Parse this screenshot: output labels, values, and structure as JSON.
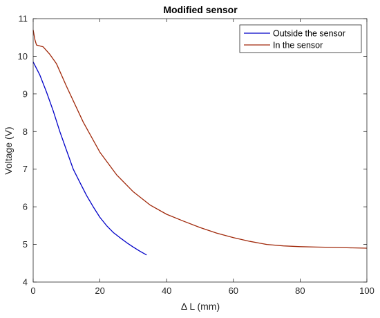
{
  "chart_data": {
    "type": "line",
    "title": "Modified sensor",
    "xlabel": "Δ L (mm)",
    "ylabel": "Voltage (V)",
    "xlim": [
      0,
      100
    ],
    "ylim": [
      4,
      11
    ],
    "xticks": [
      "0",
      "20",
      "40",
      "60",
      "80",
      "100"
    ],
    "yticks": [
      "4",
      "5",
      "6",
      "7",
      "8",
      "9",
      "10",
      "11"
    ],
    "grid": false,
    "legend_position": "top-right",
    "colors": {
      "series_0": "#0000c8",
      "series_1": "#a0280a",
      "axis": "#262626"
    },
    "series": [
      {
        "name": "Outside the sensor",
        "x": [
          0,
          2,
          4,
          6,
          8,
          10,
          12,
          14,
          16,
          18,
          20,
          22,
          24,
          26,
          28,
          30,
          32,
          34
        ],
        "y": [
          9.85,
          9.5,
          9.05,
          8.55,
          8.0,
          7.5,
          7.0,
          6.65,
          6.3,
          6.0,
          5.72,
          5.5,
          5.32,
          5.18,
          5.05,
          4.93,
          4.82,
          4.72
        ]
      },
      {
        "name": "In the sensor",
        "x": [
          0,
          0.5,
          1,
          3,
          5,
          7,
          10,
          15,
          20,
          25,
          30,
          35,
          40,
          45,
          50,
          55,
          60,
          65,
          70,
          75,
          80,
          85,
          90,
          95,
          100
        ],
        "y": [
          10.7,
          10.45,
          10.3,
          10.25,
          10.05,
          9.8,
          9.2,
          8.25,
          7.45,
          6.85,
          6.4,
          6.05,
          5.8,
          5.62,
          5.45,
          5.3,
          5.18,
          5.08,
          5.0,
          4.96,
          4.94,
          4.93,
          4.92,
          4.91,
          4.9
        ]
      }
    ]
  }
}
